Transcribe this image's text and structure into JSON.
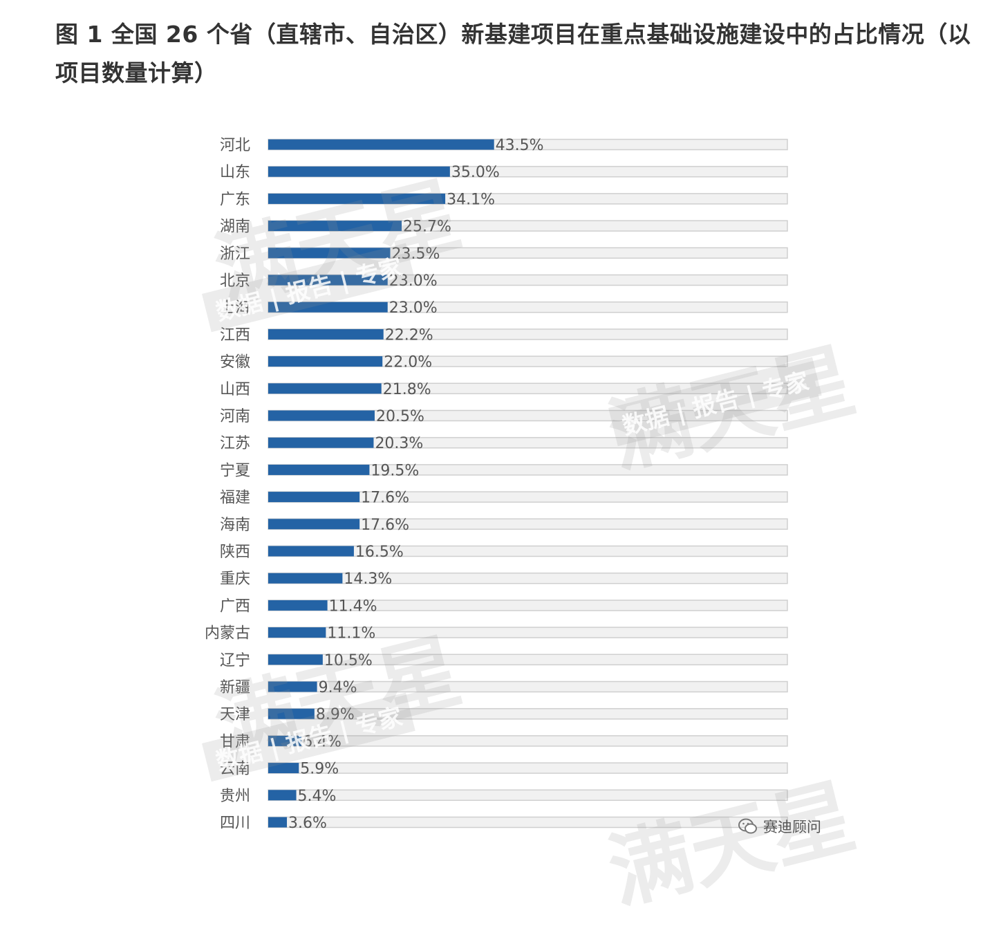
{
  "figure": {
    "title": "图 1 全国 26 个省（直辖市、自治区）新基建项目在重点基础设施建设中的占比情况（以项目数量计算）"
  },
  "watermark": {
    "brand": "满天星",
    "tagline": "数据 | 报告 | 专家"
  },
  "source": {
    "label": "赛迪顾问",
    "icon": "wechat-icon"
  },
  "colors": {
    "bar": "#2463a5",
    "track": "#f1f1f1",
    "track_border": "#cfcfcf",
    "label": "#555555"
  },
  "chart_data": {
    "type": "bar",
    "orientation": "horizontal",
    "title": "图 1 全国 26 个省（直辖市、自治区）新基建项目在重点基础设施建设中的占比情况（以项目数量计算）",
    "xlim": [
      0,
      100
    ],
    "grid": false,
    "categories": [
      "河北",
      "山东",
      "广东",
      "湖南",
      "浙江",
      "北京",
      "上海",
      "江西",
      "安徽",
      "山西",
      "河南",
      "江苏",
      "宁夏",
      "福建",
      "海南",
      "陕西",
      "重庆",
      "广西",
      "内蒙古",
      "辽宁",
      "新疆",
      "天津",
      "甘肃",
      "云南",
      "贵州",
      "四川"
    ],
    "values": [
      43.5,
      35.0,
      34.1,
      25.7,
      23.5,
      23.0,
      23.0,
      22.2,
      22.0,
      21.8,
      20.5,
      20.3,
      19.5,
      17.6,
      17.6,
      16.5,
      14.3,
      11.4,
      11.1,
      10.5,
      9.4,
      8.9,
      6.4,
      5.9,
      5.4,
      3.6
    ],
    "labels": [
      "43.5%",
      "35.0%",
      "34.1%",
      "25.7%",
      "23.5%",
      "23.0%",
      "23.0%",
      "22.2%",
      "22.0%",
      "21.8%",
      "20.5%",
      "20.3%",
      "19.5%",
      "17.6%",
      "17.6%",
      "16.5%",
      "14.3%",
      "11.4%",
      "11.1%",
      "10.5%",
      "9.4%",
      "8.9%",
      "6.4%",
      "5.9%",
      "5.4%",
      "3.6%"
    ]
  }
}
